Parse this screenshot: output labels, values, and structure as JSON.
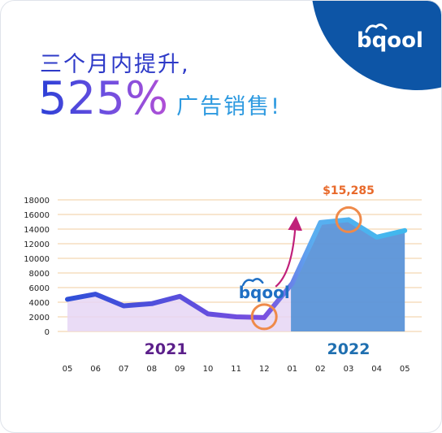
{
  "brand": {
    "name": "bqool",
    "color": "#0d55a6"
  },
  "headline": {
    "line1": "三个月内提升,",
    "percent": "525%",
    "line2_suffix": "广告销售!"
  },
  "chart_data": {
    "type": "line",
    "x": [
      "05",
      "06",
      "07",
      "08",
      "09",
      "10",
      "11",
      "12",
      "01",
      "02",
      "03",
      "04",
      "05"
    ],
    "series": [
      {
        "values": [
          4400,
          5100,
          3500,
          3800,
          4800,
          2400,
          2000,
          1900,
          6600,
          14900,
          15285,
          12900,
          13800
        ]
      }
    ],
    "year_labels": [
      {
        "label": "2021",
        "from": "05",
        "to": "12",
        "color": "#5b1f8a"
      },
      {
        "label": "2022",
        "from": "01",
        "to": "05",
        "color": "#1f6fb0"
      }
    ],
    "yticks": [
      "0",
      "2000",
      "4000",
      "6000",
      "8000",
      "10000",
      "12000",
      "14000",
      "16000",
      "18000"
    ],
    "ylim": [
      0,
      18000
    ],
    "grid": true,
    "annotation": {
      "text": "$15,285",
      "x": "03",
      "y": 15285
    },
    "watermark": "bqool",
    "colors": {
      "line_2021": "#7a4fe0",
      "line_2022": "#5aaef0",
      "area_2021": "#e6d6f5",
      "area_2022": "#5b93d8",
      "grid": "#f3d7b2",
      "marker": "#ef8a4a",
      "arrow": "#c0207a"
    }
  }
}
